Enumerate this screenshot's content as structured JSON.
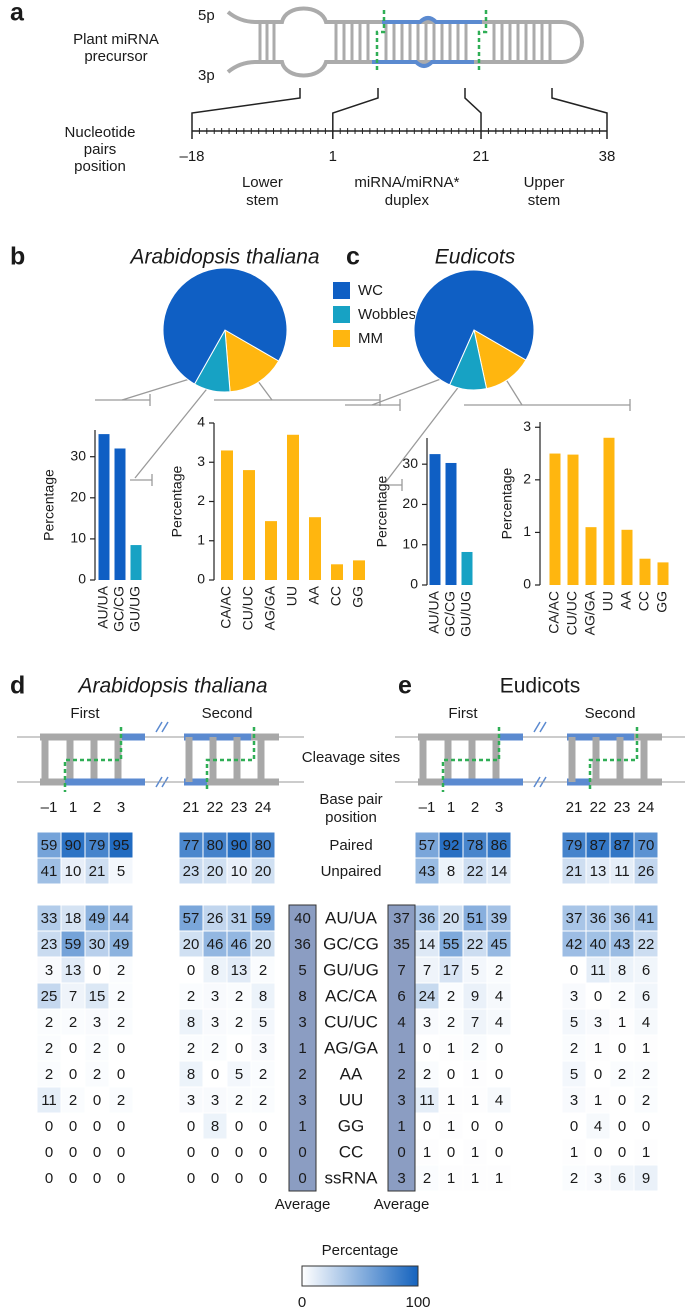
{
  "panel_labels": [
    "a",
    "b",
    "c",
    "d",
    "e"
  ],
  "panel_a": {
    "precursor_label": [
      "Plant miRNA",
      "precursor"
    ],
    "strand_5p": "5p",
    "strand_3p": "3p",
    "axis_label": [
      "Nucleotide",
      "pairs",
      "position"
    ],
    "xlim": [
      -18,
      38
    ],
    "ticks": [
      {
        "value": -18,
        "label": "–18"
      },
      1,
      21,
      38
    ],
    "regions": [
      [
        "Lower",
        "stem"
      ],
      [
        "miRNA/miRNA*",
        "duplex"
      ],
      [
        "Upper",
        "stem"
      ]
    ]
  },
  "legend": {
    "names": [
      "WC",
      "Wobbles",
      "MM"
    ],
    "colors": [
      "#0f5fc4",
      "#17a2c4",
      "#ffb60f"
    ]
  },
  "heatmap_rows": {
    "paired": [
      "Paired",
      "Unpaired"
    ],
    "bases": [
      "AU/UA",
      "GC/CG",
      "GU/UG",
      "AC/CA",
      "CU/UC",
      "AG/GA",
      "AA",
      "UU",
      "GG",
      "CC",
      "ssRNA"
    ]
  },
  "heatmap_captions": {
    "cleavage": "Cleavage sites",
    "position": [
      "Base pair",
      "position"
    ]
  },
  "colorbar": {
    "label": "Percentage",
    "range": [
      0,
      100
    ],
    "colors": [
      "#ffffff",
      "#1563be"
    ]
  },
  "chart_data": [
    {
      "type": "pie",
      "title": "Arabidopsis thaliana",
      "values": [
        67.5,
        8.5,
        13.8
      ]
    },
    {
      "type": "bar",
      "ylabel": "Percentage",
      "categories": [
        "AU/UA",
        "GC/CG",
        "GU/UG"
      ],
      "values": [
        35.5,
        32,
        8.5
      ],
      "colors": [
        "#0f5fc4",
        "#0f5fc4",
        "#17a2c4"
      ],
      "ylim": [
        0,
        36.5
      ],
      "yticks": [
        0,
        10,
        20,
        30
      ]
    },
    {
      "type": "bar",
      "ylabel": "Percentage",
      "categories": [
        "CA/AC",
        "CU/UC",
        "AG/GA",
        "UU",
        "AA",
        "CC",
        "GG"
      ],
      "values": [
        3.3,
        2.8,
        1.5,
        3.7,
        1.6,
        0.4,
        0.5
      ],
      "color": "#ffb60f",
      "ylim": [
        0,
        4
      ],
      "yticks": [
        0,
        1,
        2,
        3,
        4
      ]
    },
    {
      "type": "pie",
      "title": "Eudicots",
      "values": [
        62.8,
        8.2,
        10.9
      ]
    },
    {
      "type": "bar",
      "ylabel": "Percentage",
      "categories": [
        "AU/UA",
        "GC/CG",
        "GU/UG"
      ],
      "values": [
        32.5,
        30.3,
        8.2
      ],
      "colors": [
        "#0f5fc4",
        "#0f5fc4",
        "#17a2c4"
      ],
      "ylim": [
        0,
        36.5
      ],
      "yticks": [
        0,
        10,
        20,
        30
      ]
    },
    {
      "type": "bar",
      "ylabel": "Percentage",
      "categories": [
        "CA/AC",
        "CU/UC",
        "AG/GA",
        "UU",
        "AA",
        "CC",
        "GG"
      ],
      "values": [
        2.5,
        2.48,
        1.1,
        2.8,
        1.05,
        0.5,
        0.43
      ],
      "color": "#ffb60f",
      "ylim": [
        0,
        3.1
      ],
      "yticks": [
        0,
        1,
        2,
        3
      ]
    },
    {
      "type": "heatmap",
      "title": "Arabidopsis thaliana",
      "average_label": "Average",
      "groups": [
        {
          "name": "First",
          "columns": [
            "–1",
            "1",
            "2",
            "3"
          ],
          "paired": [
            [
              59,
              90,
              79,
              95
            ],
            [
              41,
              10,
              21,
              5
            ]
          ],
          "bases": [
            [
              33,
              18,
              49,
              44
            ],
            [
              23,
              59,
              30,
              49
            ],
            [
              3,
              13,
              0,
              2
            ],
            [
              25,
              7,
              15,
              2
            ],
            [
              2,
              2,
              3,
              2
            ],
            [
              2,
              0,
              2,
              0
            ],
            [
              2,
              0,
              2,
              0
            ],
            [
              11,
              2,
              0,
              2
            ],
            [
              0,
              0,
              0,
              0
            ],
            [
              0,
              0,
              0,
              0
            ],
            [
              0,
              0,
              0,
              0
            ]
          ]
        },
        {
          "name": "Second",
          "columns": [
            "21",
            "22",
            "23",
            "24"
          ],
          "paired": [
            [
              77,
              80,
              90,
              80
            ],
            [
              23,
              20,
              10,
              20
            ]
          ],
          "bases": [
            [
              57,
              26,
              31,
              59
            ],
            [
              20,
              46,
              46,
              20
            ],
            [
              0,
              8,
              13,
              2
            ],
            [
              2,
              3,
              2,
              8
            ],
            [
              8,
              3,
              2,
              5
            ],
            [
              2,
              2,
              0,
              3
            ],
            [
              8,
              0,
              5,
              2
            ],
            [
              3,
              3,
              2,
              2
            ],
            [
              0,
              8,
              0,
              0
            ],
            [
              0,
              0,
              0,
              0
            ],
            [
              0,
              0,
              0,
              0
            ]
          ]
        }
      ],
      "average": [
        40,
        36,
        5,
        8,
        3,
        1,
        2,
        3,
        1,
        0,
        0
      ]
    },
    {
      "type": "heatmap",
      "title": "Eudicots",
      "average_label": "Average",
      "groups": [
        {
          "name": "First",
          "columns": [
            "–1",
            "1",
            "2",
            "3"
          ],
          "paired": [
            [
              57,
              92,
              78,
              86
            ],
            [
              43,
              8,
              22,
              14
            ]
          ],
          "bases": [
            [
              36,
              20,
              51,
              39
            ],
            [
              14,
              55,
              22,
              45
            ],
            [
              7,
              17,
              5,
              2
            ],
            [
              24,
              2,
              9,
              4
            ],
            [
              3,
              2,
              7,
              4
            ],
            [
              0,
              1,
              2,
              0
            ],
            [
              2,
              0,
              1,
              0
            ],
            [
              11,
              1,
              1,
              4
            ],
            [
              0,
              1,
              0,
              0
            ],
            [
              1,
              0,
              1,
              0
            ],
            [
              2,
              1,
              1,
              1
            ]
          ]
        },
        {
          "name": "Second",
          "columns": [
            "21",
            "22",
            "23",
            "24"
          ],
          "paired": [
            [
              79,
              87,
              87,
              70
            ],
            [
              21,
              13,
              11,
              26
            ]
          ],
          "bases": [
            [
              37,
              36,
              36,
              41
            ],
            [
              42,
              40,
              43,
              22
            ],
            [
              0,
              11,
              8,
              6
            ],
            [
              3,
              0,
              2,
              6
            ],
            [
              5,
              3,
              1,
              4
            ],
            [
              2,
              1,
              0,
              1
            ],
            [
              5,
              0,
              2,
              2
            ],
            [
              3,
              1,
              0,
              2
            ],
            [
              0,
              4,
              0,
              0
            ],
            [
              1,
              0,
              0,
              1
            ],
            [
              2,
              3,
              6,
              9
            ]
          ]
        }
      ],
      "average": [
        37,
        35,
        7,
        6,
        4,
        1,
        2,
        3,
        1,
        0,
        3
      ]
    }
  ]
}
